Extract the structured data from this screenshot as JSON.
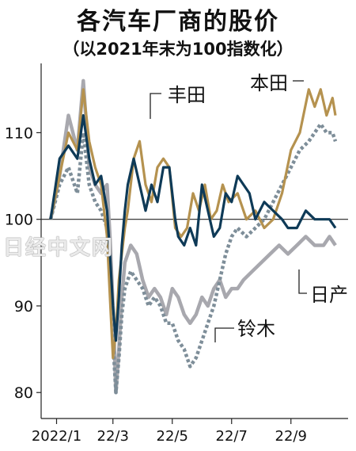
{
  "title": "各汽车厂商的股价",
  "subtitle": "（以2021年末为100指数化）",
  "watermark": "日经中文网",
  "chart_data": {
    "type": "line",
    "x": [
      "2022/1",
      "22/3",
      "22/5",
      "22/7",
      "22/9"
    ],
    "x_ticks": [
      "2022/1",
      "22/3",
      "22/5",
      "22/7",
      "22/9"
    ],
    "y_ticks": [
      80,
      90,
      100,
      110
    ],
    "ylim": [
      77,
      118
    ],
    "baseline": 100,
    "grid": false,
    "series": [
      {
        "name": "丰田",
        "color": "#0e3a57",
        "dash": "solid",
        "points": [
          [
            0,
            100
          ],
          [
            0.3,
            107
          ],
          [
            0.6,
            108.5
          ],
          [
            0.9,
            107
          ],
          [
            1.1,
            112
          ],
          [
            1.3,
            107
          ],
          [
            1.5,
            104
          ],
          [
            1.7,
            105
          ],
          [
            1.9,
            101
          ],
          [
            2.0,
            96
          ],
          [
            2.1,
            90
          ],
          [
            2.2,
            86
          ],
          [
            2.3,
            91
          ],
          [
            2.4,
            97
          ],
          [
            2.5,
            101
          ],
          [
            2.6,
            104
          ],
          [
            2.8,
            107
          ],
          [
            3.0,
            104
          ],
          [
            3.2,
            101
          ],
          [
            3.4,
            104
          ],
          [
            3.6,
            102
          ],
          [
            3.8,
            106
          ],
          [
            4.0,
            106
          ],
          [
            4.2,
            100
          ],
          [
            4.3,
            98
          ],
          [
            4.5,
            97
          ],
          [
            4.7,
            99
          ],
          [
            4.9,
            97
          ],
          [
            5.1,
            104
          ],
          [
            5.3,
            101
          ],
          [
            5.5,
            98
          ],
          [
            5.7,
            99
          ],
          [
            5.9,
            103
          ],
          [
            6.1,
            102
          ],
          [
            6.3,
            105
          ],
          [
            6.5,
            104
          ],
          [
            6.7,
            103
          ],
          [
            6.9,
            100
          ],
          [
            7.2,
            102
          ],
          [
            7.5,
            101
          ],
          [
            7.8,
            100
          ],
          [
            8.0,
            99
          ],
          [
            8.3,
            99
          ],
          [
            8.6,
            101
          ],
          [
            8.9,
            100
          ],
          [
            9.2,
            100
          ],
          [
            9.4,
            100
          ],
          [
            9.6,
            99
          ]
        ]
      },
      {
        "name": "本田",
        "color": "#b5924f",
        "dash": "solid",
        "points": [
          [
            0,
            100
          ],
          [
            0.3,
            105
          ],
          [
            0.6,
            110
          ],
          [
            0.9,
            108
          ],
          [
            1.1,
            115
          ],
          [
            1.3,
            109
          ],
          [
            1.5,
            106
          ],
          [
            1.7,
            104
          ],
          [
            1.9,
            98
          ],
          [
            2.0,
            91
          ],
          [
            2.1,
            84
          ],
          [
            2.2,
            87
          ],
          [
            2.3,
            93
          ],
          [
            2.4,
            96
          ],
          [
            2.5,
            99
          ],
          [
            2.6,
            101
          ],
          [
            2.8,
            107
          ],
          [
            3.0,
            109
          ],
          [
            3.2,
            104
          ],
          [
            3.4,
            102
          ],
          [
            3.6,
            106
          ],
          [
            3.8,
            107
          ],
          [
            4.0,
            106
          ],
          [
            4.2,
            99
          ],
          [
            4.4,
            98
          ],
          [
            4.6,
            99
          ],
          [
            4.8,
            103
          ],
          [
            5.0,
            101
          ],
          [
            5.2,
            104
          ],
          [
            5.4,
            100
          ],
          [
            5.6,
            101
          ],
          [
            5.8,
            104
          ],
          [
            6.0,
            102
          ],
          [
            6.3,
            103
          ],
          [
            6.6,
            100
          ],
          [
            6.9,
            101
          ],
          [
            7.2,
            99
          ],
          [
            7.5,
            100
          ],
          [
            7.8,
            103
          ],
          [
            8.1,
            108
          ],
          [
            8.4,
            110
          ],
          [
            8.7,
            115
          ],
          [
            8.9,
            113
          ],
          [
            9.1,
            115
          ],
          [
            9.3,
            112
          ],
          [
            9.5,
            114
          ],
          [
            9.6,
            112
          ]
        ]
      },
      {
        "name": "日产",
        "color": "#a8a8ae",
        "dash": "solid",
        "points": [
          [
            0,
            100
          ],
          [
            0.3,
            105
          ],
          [
            0.6,
            112
          ],
          [
            0.9,
            108
          ],
          [
            1.1,
            116
          ],
          [
            1.3,
            106
          ],
          [
            1.5,
            104
          ],
          [
            1.7,
            103
          ],
          [
            1.9,
            104
          ],
          [
            2.0,
            98
          ],
          [
            2.1,
            90
          ],
          [
            2.2,
            80
          ],
          [
            2.3,
            85
          ],
          [
            2.4,
            91
          ],
          [
            2.5,
            95
          ],
          [
            2.7,
            97
          ],
          [
            2.9,
            96
          ],
          [
            3.1,
            93
          ],
          [
            3.3,
            91
          ],
          [
            3.5,
            92
          ],
          [
            3.7,
            91
          ],
          [
            3.9,
            89
          ],
          [
            4.1,
            92
          ],
          [
            4.3,
            91
          ],
          [
            4.5,
            89
          ],
          [
            4.7,
            88
          ],
          [
            4.9,
            89
          ],
          [
            5.1,
            91
          ],
          [
            5.3,
            90
          ],
          [
            5.5,
            92
          ],
          [
            5.7,
            93
          ],
          [
            5.9,
            91
          ],
          [
            6.1,
            92
          ],
          [
            6.3,
            92
          ],
          [
            6.5,
            93
          ],
          [
            6.8,
            94
          ],
          [
            7.1,
            95
          ],
          [
            7.4,
            96
          ],
          [
            7.7,
            97
          ],
          [
            8.0,
            96
          ],
          [
            8.3,
            97
          ],
          [
            8.6,
            98
          ],
          [
            8.9,
            97
          ],
          [
            9.2,
            97
          ],
          [
            9.4,
            98
          ],
          [
            9.6,
            97
          ]
        ]
      },
      {
        "name": "铃木",
        "color": "#7e8e99",
        "dash": "dashed",
        "points": [
          [
            0,
            100
          ],
          [
            0.3,
            104
          ],
          [
            0.6,
            106
          ],
          [
            0.9,
            103
          ],
          [
            1.1,
            110
          ],
          [
            1.3,
            104
          ],
          [
            1.5,
            102
          ],
          [
            1.7,
            101
          ],
          [
            1.9,
            99
          ],
          [
            2.0,
            94
          ],
          [
            2.1,
            86
          ],
          [
            2.2,
            80
          ],
          [
            2.3,
            84
          ],
          [
            2.4,
            89
          ],
          [
            2.5,
            92
          ],
          [
            2.7,
            94
          ],
          [
            2.9,
            93
          ],
          [
            3.1,
            92
          ],
          [
            3.3,
            90
          ],
          [
            3.5,
            91
          ],
          [
            3.7,
            90
          ],
          [
            3.9,
            88
          ],
          [
            4.1,
            88
          ],
          [
            4.3,
            86
          ],
          [
            4.5,
            85
          ],
          [
            4.7,
            83
          ],
          [
            4.9,
            84
          ],
          [
            5.1,
            86
          ],
          [
            5.3,
            88
          ],
          [
            5.5,
            90
          ],
          [
            5.7,
            93
          ],
          [
            5.9,
            96
          ],
          [
            6.1,
            98
          ],
          [
            6.3,
            99
          ],
          [
            6.6,
            98
          ],
          [
            6.9,
            99
          ],
          [
            7.2,
            100
          ],
          [
            7.5,
            102
          ],
          [
            7.8,
            104
          ],
          [
            8.1,
            106
          ],
          [
            8.4,
            108
          ],
          [
            8.7,
            109
          ],
          [
            8.9,
            110
          ],
          [
            9.1,
            111
          ],
          [
            9.3,
            110
          ],
          [
            9.5,
            110
          ],
          [
            9.6,
            109
          ]
        ]
      }
    ],
    "labels": [
      {
        "text": "丰田",
        "series": "丰田"
      },
      {
        "text": "本田",
        "series": "本田"
      },
      {
        "text": "日产",
        "series": "日产"
      },
      {
        "text": "铃木",
        "series": "铃木"
      }
    ]
  }
}
